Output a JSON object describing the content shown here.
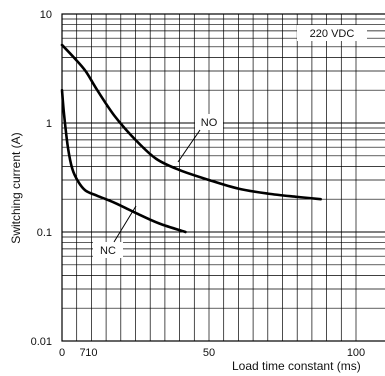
{
  "chart_data": {
    "type": "line",
    "xlabel": "Load time constant (ms)",
    "ylabel": "Switching current (A)",
    "xscale": "linear",
    "yscale": "log",
    "xlim": [
      0,
      100
    ],
    "ylim": [
      0.01,
      10
    ],
    "x_ticks": [
      {
        "value": 0,
        "label": "0"
      },
      {
        "value": 7,
        "label": "7"
      },
      {
        "value": 10,
        "label": "10"
      },
      {
        "value": 50,
        "label": "50"
      },
      {
        "value": 100,
        "label": "100"
      }
    ],
    "y_ticks": [
      {
        "value": 10,
        "label": "10"
      },
      {
        "value": 1,
        "label": "1"
      },
      {
        "value": 0.1,
        "label": "0.1"
      },
      {
        "value": 0.01,
        "label": "0.01"
      }
    ],
    "grid": true,
    "annotation": "220 VDC",
    "series": [
      {
        "name": "NO",
        "points": [
          [
            0,
            5.2
          ],
          [
            4,
            4.0
          ],
          [
            8,
            3.0
          ],
          [
            12,
            2.0
          ],
          [
            18,
            1.15
          ],
          [
            25,
            0.7
          ],
          [
            32,
            0.47
          ],
          [
            40,
            0.37
          ],
          [
            50,
            0.3
          ],
          [
            60,
            0.25
          ],
          [
            70,
            0.225
          ],
          [
            80,
            0.21
          ],
          [
            88,
            0.2
          ]
        ]
      },
      {
        "name": "NC",
        "points": [
          [
            0,
            2.0
          ],
          [
            0.7,
            1.2
          ],
          [
            2,
            0.6
          ],
          [
            3.5,
            0.38
          ],
          [
            5.5,
            0.29
          ],
          [
            8,
            0.24
          ],
          [
            12,
            0.215
          ],
          [
            18,
            0.185
          ],
          [
            25,
            0.15
          ],
          [
            33,
            0.12
          ],
          [
            42,
            0.1
          ]
        ]
      }
    ]
  }
}
